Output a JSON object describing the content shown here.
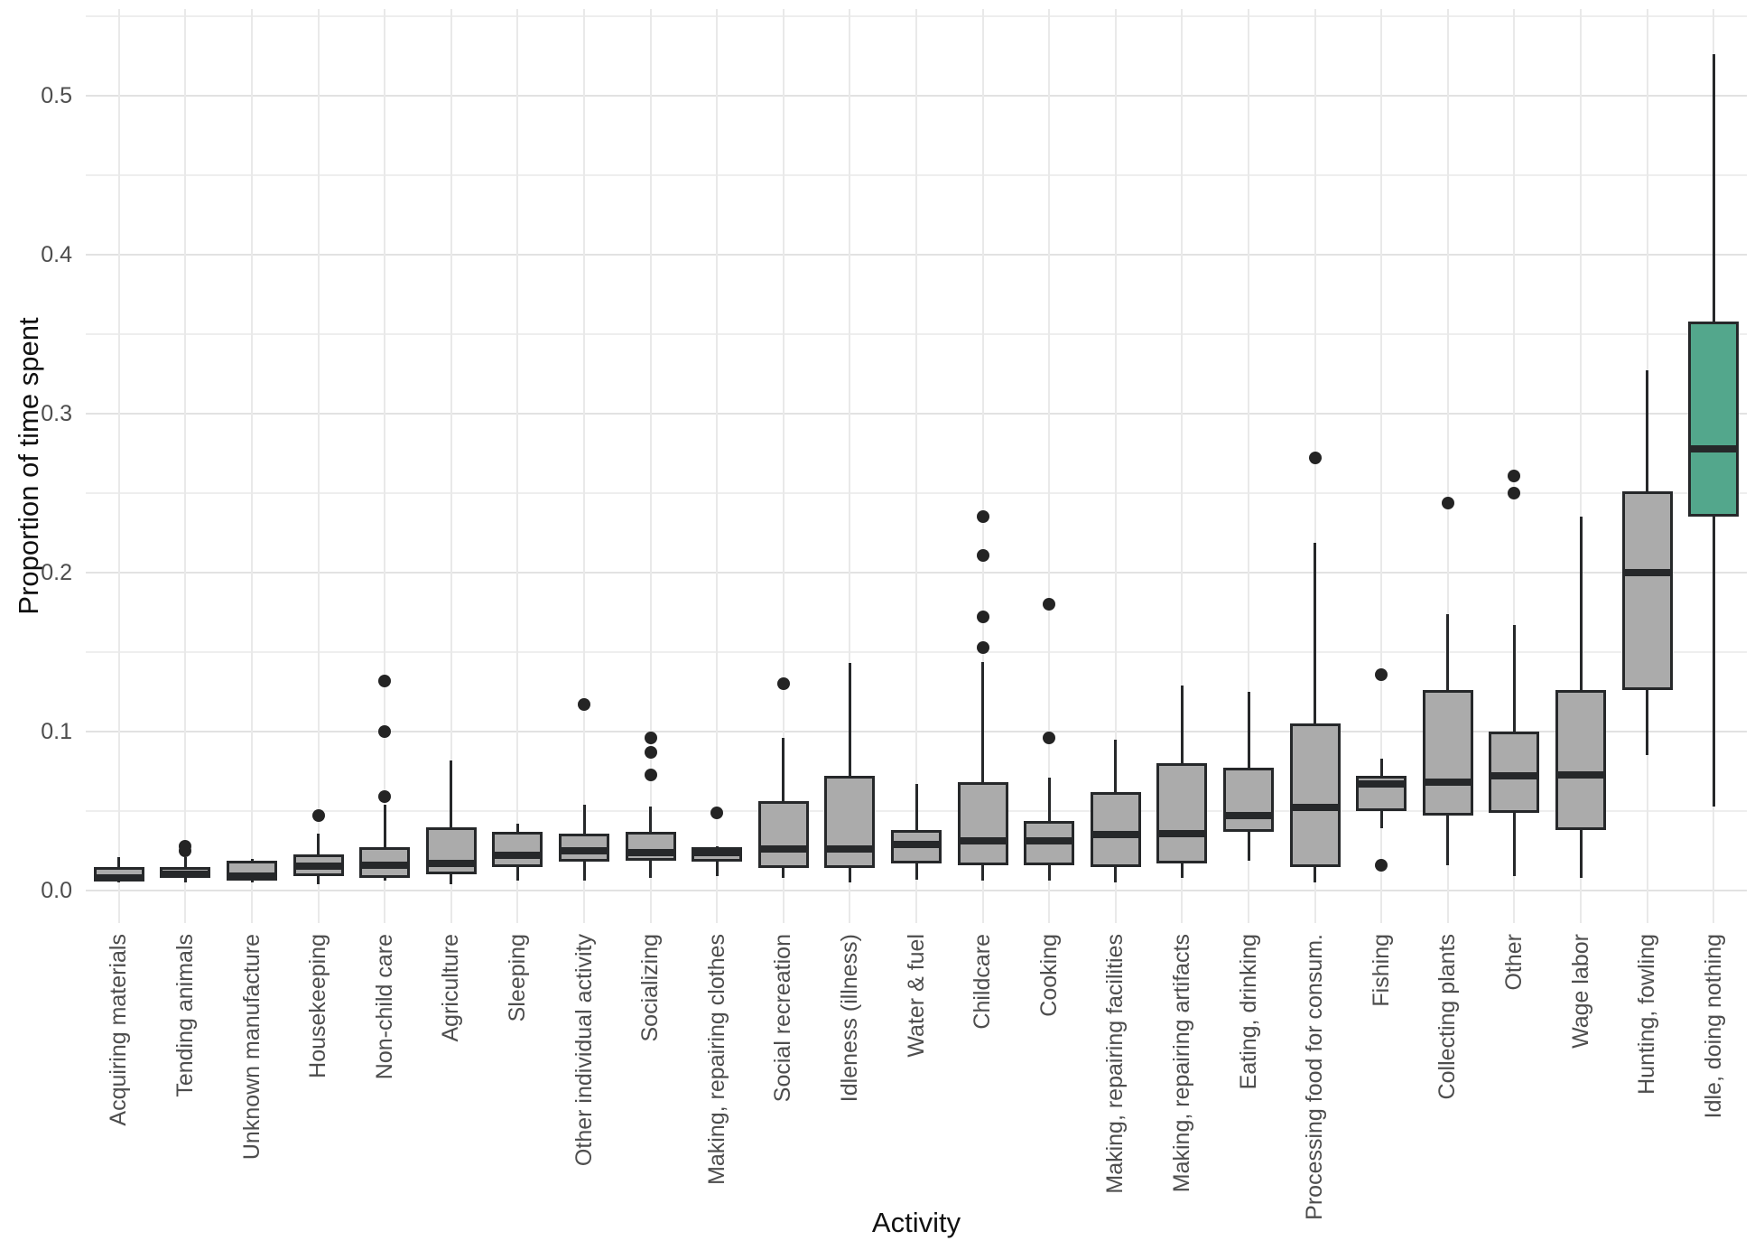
{
  "colors": {
    "background": "#ffffff",
    "box_fill": "#ababab",
    "highlight_fill": "#53a78c",
    "line": "#26282a",
    "grid_major": "#e2e2e2",
    "grid_minor": "#eeeeee",
    "tick_text": "#4d4d4d",
    "title_text": "#111111"
  },
  "chart_data": {
    "type": "boxplot",
    "title": "",
    "xlabel": "Activity",
    "ylabel": "Proportion of time spent",
    "ylim": [
      -0.02,
      0.553
    ],
    "grid": true,
    "legend": "none",
    "y_major_ticks": [
      0.0,
      0.1,
      0.2,
      0.3,
      0.4,
      0.5
    ],
    "y_major_tick_labels": [
      "0.0",
      "0.1",
      "0.2",
      "0.3",
      "0.4",
      "0.5"
    ],
    "y_minor_ticks": [
      0.05,
      0.15,
      0.25,
      0.35,
      0.45,
      0.55
    ],
    "highlight_category": "Idle, doing nothing",
    "categories": [
      "Acquiring materials",
      "Tending animals",
      "Unknown manufacture",
      "Housekeeping",
      "Non-child care",
      "Agriculture",
      "Sleeping",
      "Other individual activity",
      "Socializing",
      "Making, repairing clothes",
      "Social recreation",
      "Idleness (illness)",
      "Water & fuel",
      "Childcare",
      "Cooking",
      "Making, repairing facilities",
      "Making, repairing artifacts",
      "Eating, drinking",
      "Processing food for consum.",
      "Fishing",
      "Collecting plants",
      "Other",
      "Wage labor",
      "Hunting, fowling",
      "Idle, doing nothing"
    ],
    "boxes": [
      {
        "category": "Acquiring materials",
        "min": 0.005,
        "q1": 0.006,
        "median": 0.008,
        "q3": 0.015,
        "max": 0.021,
        "outliers": [],
        "highlighted": false
      },
      {
        "category": "Tending animals",
        "min": 0.005,
        "q1": 0.008,
        "median": 0.0105,
        "q3": 0.015,
        "max": 0.021,
        "outliers": [
          0.025,
          0.028
        ],
        "highlighted": false
      },
      {
        "category": "Unknown manufacture",
        "min": 0.005,
        "q1": 0.006,
        "median": 0.009,
        "q3": 0.019,
        "max": 0.02,
        "outliers": [],
        "highlighted": false
      },
      {
        "category": "Housekeeping",
        "min": 0.004,
        "q1": 0.009,
        "median": 0.0155,
        "q3": 0.023,
        "max": 0.036,
        "outliers": [
          0.047
        ],
        "highlighted": false
      },
      {
        "category": "Non-child care",
        "min": 0.006,
        "q1": 0.008,
        "median": 0.016,
        "q3": 0.027,
        "max": 0.054,
        "outliers": [
          0.059,
          0.1,
          0.132
        ],
        "highlighted": false
      },
      {
        "category": "Agriculture",
        "min": 0.004,
        "q1": 0.01,
        "median": 0.017,
        "q3": 0.04,
        "max": 0.082,
        "outliers": [],
        "highlighted": false
      },
      {
        "category": "Sleeping",
        "min": 0.006,
        "q1": 0.015,
        "median": 0.022,
        "q3": 0.037,
        "max": 0.042,
        "outliers": [],
        "highlighted": false
      },
      {
        "category": "Other individual activity",
        "min": 0.006,
        "q1": 0.018,
        "median": 0.025,
        "q3": 0.036,
        "max": 0.054,
        "outliers": [
          0.117
        ],
        "highlighted": false
      },
      {
        "category": "Socializing",
        "min": 0.008,
        "q1": 0.019,
        "median": 0.024,
        "q3": 0.037,
        "max": 0.053,
        "outliers": [
          0.073,
          0.087,
          0.096
        ],
        "highlighted": false
      },
      {
        "category": "Making, repairing clothes",
        "min": 0.009,
        "q1": 0.018,
        "median": 0.024,
        "q3": 0.027,
        "max": 0.028,
        "outliers": [
          0.049
        ],
        "highlighted": false
      },
      {
        "category": "Social recreation",
        "min": 0.008,
        "q1": 0.014,
        "median": 0.026,
        "q3": 0.056,
        "max": 0.096,
        "outliers": [
          0.13
        ],
        "highlighted": false
      },
      {
        "category": "Idleness (illness)",
        "min": 0.005,
        "q1": 0.014,
        "median": 0.026,
        "q3": 0.072,
        "max": 0.143,
        "outliers": [],
        "highlighted": false
      },
      {
        "category": "Water & fuel",
        "min": 0.007,
        "q1": 0.017,
        "median": 0.029,
        "q3": 0.038,
        "max": 0.067,
        "outliers": [],
        "highlighted": false
      },
      {
        "category": "Childcare",
        "min": 0.006,
        "q1": 0.016,
        "median": 0.031,
        "q3": 0.068,
        "max": 0.144,
        "outliers": [
          0.153,
          0.172,
          0.211,
          0.235
        ],
        "highlighted": false
      },
      {
        "category": "Cooking",
        "min": 0.006,
        "q1": 0.016,
        "median": 0.031,
        "q3": 0.044,
        "max": 0.071,
        "outliers": [
          0.096,
          0.18
        ],
        "highlighted": false
      },
      {
        "category": "Making, repairing facilities",
        "min": 0.005,
        "q1": 0.015,
        "median": 0.035,
        "q3": 0.062,
        "max": 0.095,
        "outliers": [],
        "highlighted": false
      },
      {
        "category": "Making, repairing artifacts",
        "min": 0.008,
        "q1": 0.017,
        "median": 0.036,
        "q3": 0.08,
        "max": 0.129,
        "outliers": [],
        "highlighted": false
      },
      {
        "category": "Eating, drinking",
        "min": 0.019,
        "q1": 0.037,
        "median": 0.047,
        "q3": 0.077,
        "max": 0.125,
        "outliers": [],
        "highlighted": false
      },
      {
        "category": "Processing food for consum.",
        "min": 0.005,
        "q1": 0.015,
        "median": 0.052,
        "q3": 0.105,
        "max": 0.219,
        "outliers": [
          0.272
        ],
        "highlighted": false
      },
      {
        "category": "Fishing",
        "min": 0.039,
        "q1": 0.05,
        "median": 0.067,
        "q3": 0.072,
        "max": 0.083,
        "outliers": [
          0.016,
          0.136
        ],
        "highlighted": false
      },
      {
        "category": "Collecting plants",
        "min": 0.016,
        "q1": 0.047,
        "median": 0.068,
        "q3": 0.126,
        "max": 0.174,
        "outliers": [
          0.244
        ],
        "highlighted": false
      },
      {
        "category": "Other",
        "min": 0.009,
        "q1": 0.049,
        "median": 0.072,
        "q3": 0.1,
        "max": 0.167,
        "outliers": [
          0.25,
          0.261
        ],
        "highlighted": false
      },
      {
        "category": "Wage labor",
        "min": 0.008,
        "q1": 0.038,
        "median": 0.073,
        "q3": 0.126,
        "max": 0.235,
        "outliers": [],
        "highlighted": false
      },
      {
        "category": "Hunting, fowling",
        "min": 0.085,
        "q1": 0.126,
        "median": 0.2,
        "q3": 0.251,
        "max": 0.327,
        "outliers": [],
        "highlighted": false
      },
      {
        "category": "Idle, doing nothing",
        "min": 0.053,
        "q1": 0.235,
        "median": 0.278,
        "q3": 0.358,
        "max": 0.526,
        "outliers": [],
        "highlighted": true
      }
    ]
  }
}
